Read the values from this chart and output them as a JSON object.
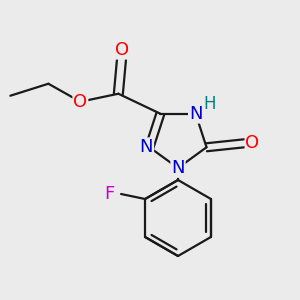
{
  "background_color": "#ebebeb",
  "bond_color": "#1a1a1a",
  "bond_width": 1.6,
  "atom_colors": {
    "O": "#ff0000",
    "N": "#0000cc",
    "H": "#008080",
    "F": "#cc00cc",
    "C": "#1a1a1a"
  },
  "font_size": 12,
  "figsize": [
    3.0,
    3.0
  ],
  "dpi": 100
}
